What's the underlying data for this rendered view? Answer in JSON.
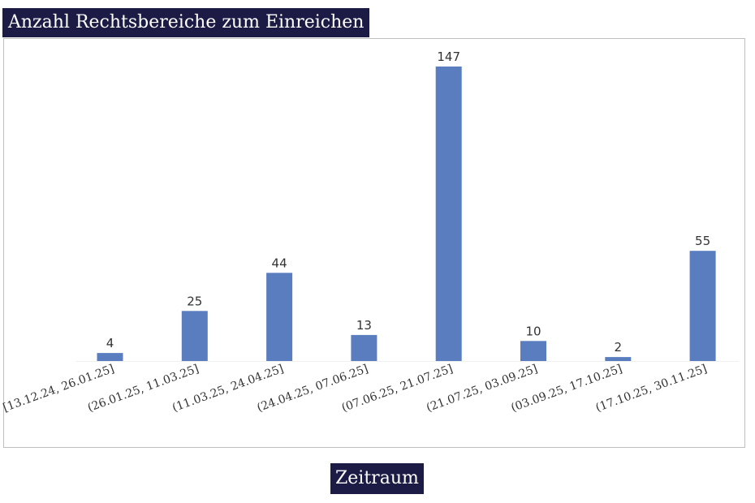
{
  "chart_data": {
    "type": "bar",
    "title": "Anzahl Rechtsbereiche zum Einreichen",
    "xlabel": "Zeitraum",
    "ylabel": "",
    "categories": [
      "[13.12.24, 26.01.25]",
      "(26.01.25, 11.03.25]",
      "(11.03.25, 24.04.25]",
      "(24.04.25, 07.06.25]",
      "(07.06.25, 21.07.25]",
      "(21.07.25, 03.09.25]",
      "(03.09.25, 17.10.25]",
      "(17.10.25, 30.11.25]"
    ],
    "values": [
      4,
      25,
      44,
      13,
      147,
      10,
      2,
      55
    ],
    "ylim": [
      0,
      150
    ],
    "grid": false,
    "legend": "none",
    "bar_color": "#5a7dbf",
    "title_background": "#1b1b45",
    "data_labels": true
  }
}
